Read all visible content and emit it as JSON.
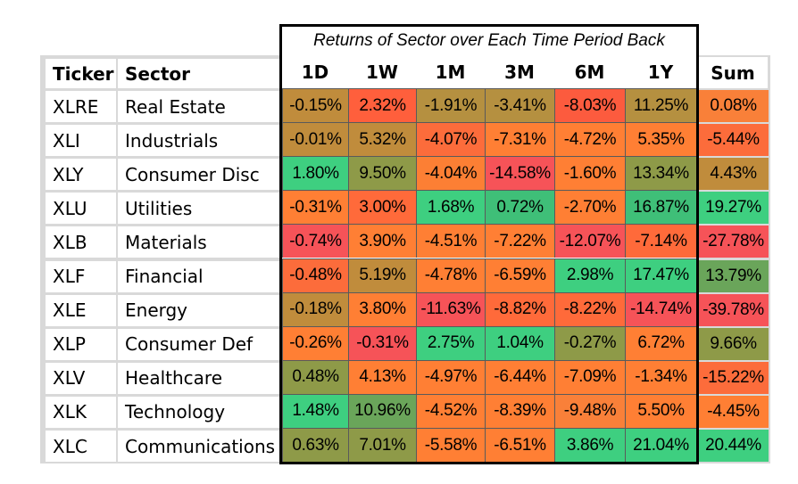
{
  "chart_data": {
    "type": "table",
    "title": "Returns of Sector over Each Time Period Back",
    "columns": [
      "Ticker",
      "Sector",
      "1D",
      "1W",
      "1M",
      "3M",
      "6M",
      "1Y",
      "Sum"
    ],
    "rows": [
      {
        "ticker": "XLRE",
        "sector": "Real Estate",
        "values": [
          "-0.15%",
          "2.32%",
          "-1.91%",
          "-3.41%",
          "-8.03%",
          "11.25%",
          "0.08%"
        ],
        "colors": [
          "#c08c3c",
          "#ff5f3c",
          "#b59040",
          "#b59040",
          "#fc5b3e",
          "#b59040",
          "#f98039"
        ]
      },
      {
        "ticker": "XLI",
        "sector": "Industrials",
        "values": [
          "-0.01%",
          "5.32%",
          "-4.07%",
          "-7.31%",
          "-4.72%",
          "5.35%",
          "-5.44%"
        ],
        "colors": [
          "#c08c3c",
          "#c08c3c",
          "#fc6c3b",
          "#ff7f34",
          "#ff7f34",
          "#ff7f34",
          "#fc6c3b"
        ]
      },
      {
        "ticker": "XLY",
        "sector": "Consumer Disc",
        "values": [
          "1.80%",
          "9.50%",
          "-4.04%",
          "-14.58%",
          "-1.60%",
          "13.34%",
          "4.43%"
        ],
        "colors": [
          "#3ecf80",
          "#8e9a48",
          "#fc7f34",
          "#f65358",
          "#ff7f34",
          "#8e9a48",
          "#c08c3c"
        ]
      },
      {
        "ticker": "XLU",
        "sector": "Utilities",
        "values": [
          "-0.31%",
          "3.00%",
          "1.68%",
          "0.72%",
          "-2.70%",
          "16.87%",
          "19.27%"
        ],
        "colors": [
          "#ff7f34",
          "#ff6a3a",
          "#3ecf80",
          "#3fbf78",
          "#ff7f34",
          "#3fbf78",
          "#3ecf80"
        ]
      },
      {
        "ticker": "XLB",
        "sector": "Materials",
        "values": [
          "-0.74%",
          "3.90%",
          "-4.51%",
          "-7.22%",
          "-12.07%",
          "-7.14%",
          "-27.78%"
        ],
        "colors": [
          "#f65358",
          "#ff7f34",
          "#ff7f34",
          "#ff7f34",
          "#f65358",
          "#ff6a3a",
          "#f65358"
        ]
      },
      {
        "ticker": "XLF",
        "sector": "Financial",
        "values": [
          "-0.48%",
          "5.19%",
          "-4.78%",
          "-6.59%",
          "2.98%",
          "17.47%",
          "13.79%"
        ],
        "colors": [
          "#fc6c3b",
          "#c08c3c",
          "#ff7f34",
          "#ff7f34",
          "#3ecf80",
          "#3ecf80",
          "#6aa55a"
        ]
      },
      {
        "ticker": "XLE",
        "sector": "Energy",
        "values": [
          "-0.18%",
          "3.80%",
          "-11.63%",
          "-8.82%",
          "-8.22%",
          "-14.74%",
          "-39.78%"
        ],
        "colors": [
          "#c08c3c",
          "#ff7f34",
          "#f65358",
          "#ff6a3a",
          "#ff6a3a",
          "#f65358",
          "#f65358"
        ]
      },
      {
        "ticker": "XLP",
        "sector": "Consumer Def",
        "values": [
          "-0.26%",
          "-0.31%",
          "2.75%",
          "1.04%",
          "-0.27%",
          "6.72%",
          "9.66%"
        ],
        "colors": [
          "#ff7f34",
          "#f65358",
          "#3ecf80",
          "#3ecf80",
          "#8e9a48",
          "#ff7f34",
          "#8e9a48"
        ]
      },
      {
        "ticker": "XLV",
        "sector": "Healthcare",
        "values": [
          "0.48%",
          "4.13%",
          "-4.97%",
          "-6.44%",
          "-7.09%",
          "-1.34%",
          "-15.22%"
        ],
        "colors": [
          "#8e9a48",
          "#ff7f34",
          "#ff7f34",
          "#ff7f34",
          "#ff7f34",
          "#ff7f34",
          "#fc6c3b"
        ]
      },
      {
        "ticker": "XLK",
        "sector": "Technology",
        "values": [
          "1.48%",
          "10.96%",
          "-4.52%",
          "-8.39%",
          "-9.48%",
          "5.50%",
          "-4.45%"
        ],
        "colors": [
          "#3ecf80",
          "#6aa55a",
          "#ff7f34",
          "#ff7f34",
          "#f98039",
          "#ff7f34",
          "#ff7f34"
        ]
      },
      {
        "ticker": "XLC",
        "sector": "Communications",
        "values": [
          "0.63%",
          "7.01%",
          "-5.58%",
          "-6.51%",
          "3.86%",
          "21.04%",
          "20.44%"
        ],
        "colors": [
          "#8e9a48",
          "#8e9a48",
          "#ff7f34",
          "#ff7f34",
          "#3ecf80",
          "#3ecf80",
          "#3ecf80"
        ]
      }
    ]
  }
}
